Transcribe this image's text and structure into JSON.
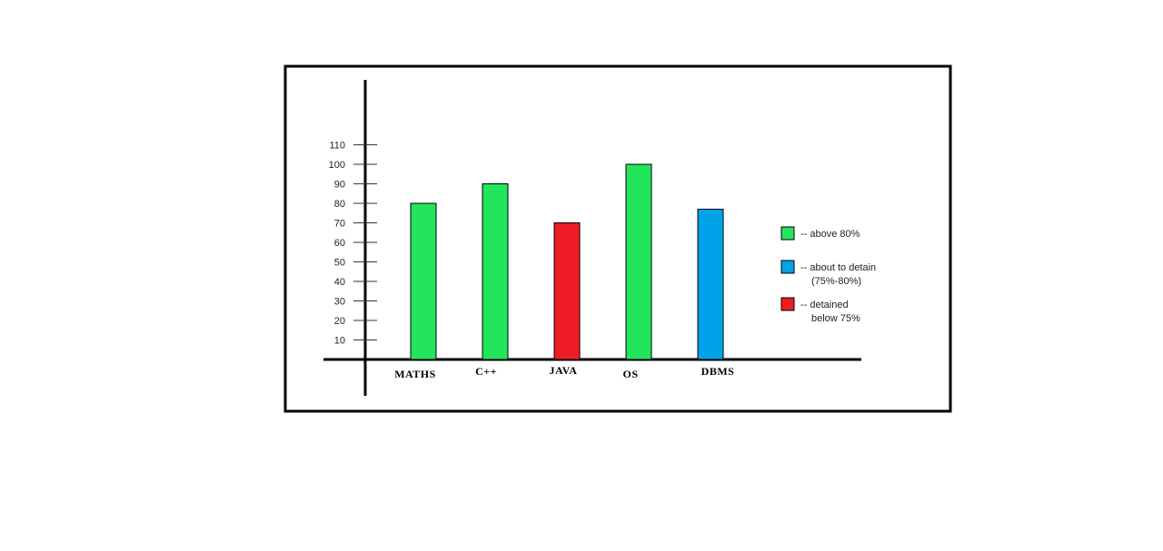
{
  "chart_data": {
    "type": "bar",
    "categories": [
      "MATHS",
      "C++",
      "JAVA",
      "OS",
      "DBMS"
    ],
    "values": [
      80,
      90,
      70,
      100,
      77
    ],
    "bar_colors": [
      "#22e55b",
      "#22e55b",
      "#ee1c25",
      "#22e55b",
      "#00a2e8"
    ],
    "y_ticks": [
      10,
      20,
      30,
      40,
      50,
      60,
      70,
      80,
      90,
      100,
      110
    ],
    "ylim": [
      0,
      110
    ],
    "title": "",
    "xlabel": "",
    "ylabel": "",
    "grid": false,
    "legend_position": "right",
    "legend": [
      {
        "color": "#22e55b",
        "lines": [
          "-- above 80%"
        ]
      },
      {
        "color": "#00a2e8",
        "lines": [
          "-- about to detain",
          "(75%-80%)"
        ]
      },
      {
        "color": "#ee1c25",
        "lines": [
          "-- detained",
          "below 75%"
        ]
      }
    ]
  }
}
